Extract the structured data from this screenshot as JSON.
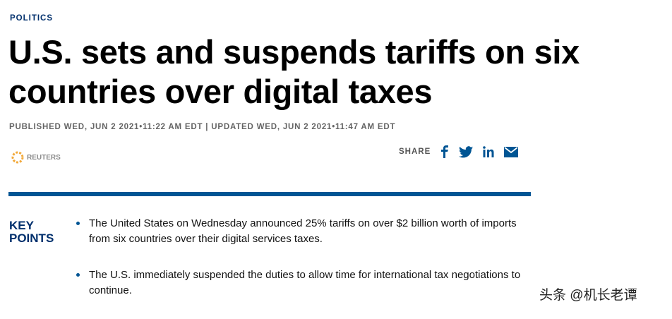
{
  "header": {
    "category": "POLITICS",
    "title": "U.S. sets and suspends tariffs on six countries over digital taxes",
    "timestamp": "PUBLISHED WED, JUN 2 2021•11:22 AM EDT | UPDATED WED, JUN 2 2021•11:47 AM EDT",
    "source": "REUTERS",
    "share_label": "SHARE"
  },
  "key_points": {
    "heading": "KEY POINTS",
    "items": [
      "The United States on Wednesday announced 25% tariffs on over $2 billion worth of imports from six countries over their digital services taxes.",
      "The U.S. immediately suspended the duties to allow time for international tax negotiations to continue."
    ]
  },
  "watermark": "头条 @机长老谭"
}
